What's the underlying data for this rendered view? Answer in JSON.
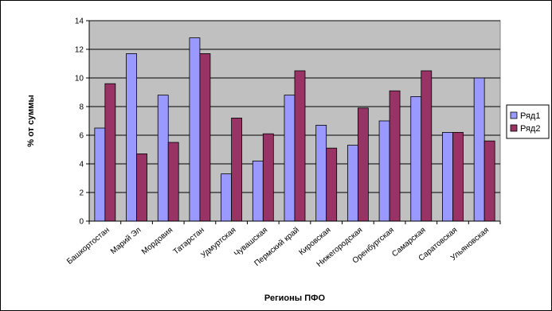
{
  "chart_data": {
    "type": "bar",
    "categories": [
      "Башкортостан",
      "Марий Эл",
      "Мордовия",
      "Татарстан",
      "Удмуртская",
      "Чувашская",
      "Пермский край",
      "Кировская",
      "Нижегородская",
      "Оренбургская",
      "Самарская",
      "Саратовская",
      "Ульяновская"
    ],
    "series": [
      {
        "name": "Ряд1",
        "values": [
          6.5,
          11.7,
          8.8,
          12.8,
          3.3,
          4.2,
          8.8,
          6.7,
          5.3,
          7.0,
          8.7,
          6.2,
          10.0
        ],
        "color": "#9999ff"
      },
      {
        "name": "Ряд2",
        "values": [
          9.6,
          4.7,
          5.5,
          11.7,
          7.2,
          6.1,
          10.5,
          5.1,
          7.9,
          9.1,
          10.5,
          6.2,
          5.6
        ],
        "color": "#993366"
      }
    ],
    "title": "",
    "xlabel": "Регионы ПФО",
    "ylabel": "% от суммы",
    "ylim": [
      0,
      14
    ],
    "yticks": [
      0,
      2,
      4,
      6,
      8,
      10,
      12,
      14
    ],
    "grid": true,
    "plot_background": "#c0c0c0",
    "legend_position": "right"
  }
}
